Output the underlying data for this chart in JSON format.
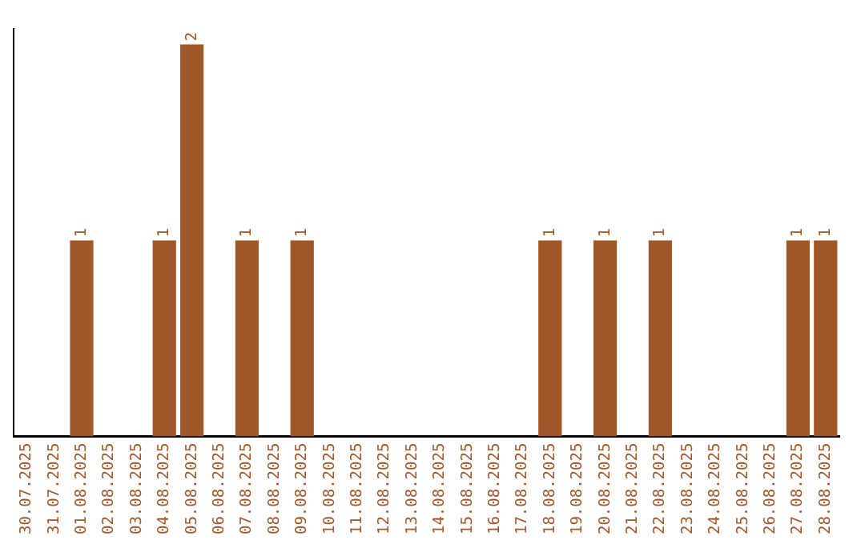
{
  "chart_data": {
    "type": "bar",
    "categories": [
      "30.07.2025",
      "31.07.2025",
      "01.08.2025",
      "02.08.2025",
      "03.08.2025",
      "04.08.2025",
      "05.08.2025",
      "06.08.2025",
      "07.08.2025",
      "08.08.2025",
      "09.08.2025",
      "10.08.2025",
      "11.08.2025",
      "12.08.2025",
      "13.08.2025",
      "14.08.2025",
      "15.08.2025",
      "16.08.2025",
      "17.08.2025",
      "18.08.2025",
      "19.08.2025",
      "20.08.2025",
      "21.08.2025",
      "22.08.2025",
      "23.08.2025",
      "24.08.2025",
      "25.08.2025",
      "26.08.2025",
      "27.08.2025",
      "28.08.2025"
    ],
    "values": [
      0,
      0,
      1,
      0,
      0,
      1,
      2,
      0,
      1,
      0,
      1,
      0,
      0,
      0,
      0,
      0,
      0,
      0,
      0,
      1,
      0,
      1,
      0,
      1,
      0,
      0,
      0,
      0,
      1,
      1
    ],
    "value_labels": [
      null,
      null,
      "1",
      null,
      null,
      "1",
      "2",
      null,
      "1",
      null,
      "1",
      null,
      null,
      null,
      null,
      null,
      null,
      null,
      null,
      "1",
      null,
      "1",
      null,
      "1",
      null,
      null,
      null,
      null,
      "1",
      "1"
    ],
    "color": "#a0572a",
    "grid": false,
    "legend": false
  }
}
